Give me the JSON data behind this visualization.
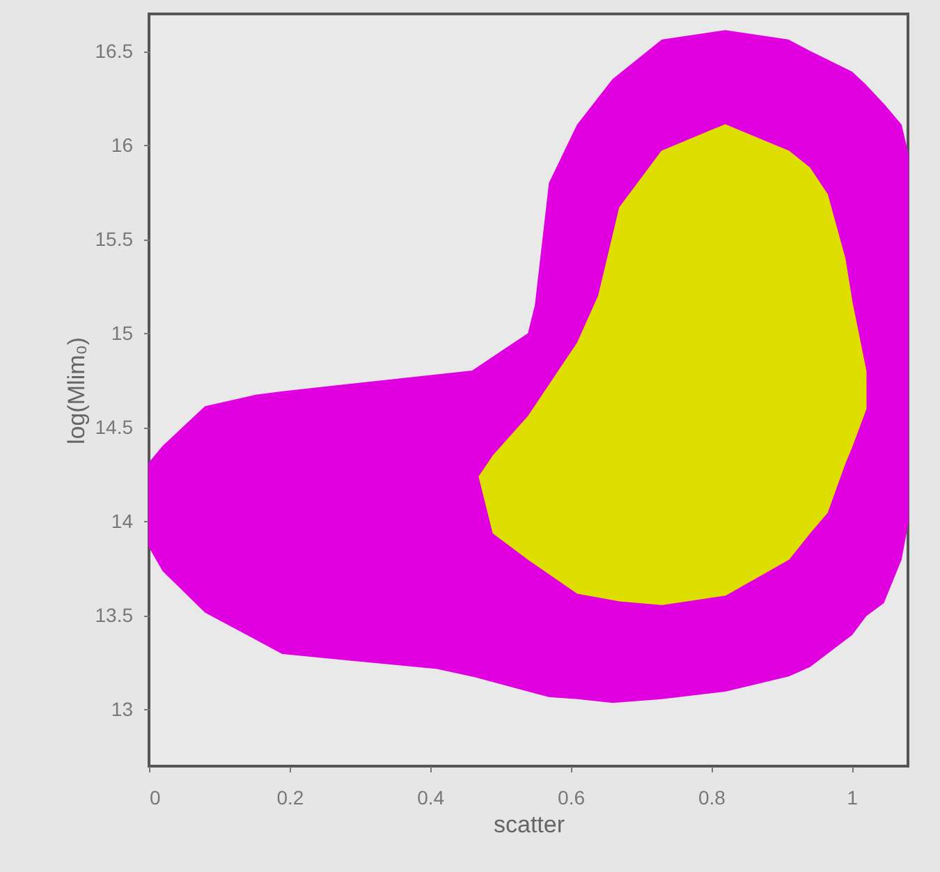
{
  "chart_data": {
    "type": "area",
    "xlabel": "scatter",
    "ylabel": "log(Mlim₀)",
    "xlim": [
      0,
      1.08
    ],
    "xticks": [
      0,
      0.2,
      0.4,
      0.6,
      0.8,
      1
    ],
    "ylim": [
      12.7,
      16.7
    ],
    "yticks": [
      13,
      13.5,
      14,
      14.5,
      15,
      15.5,
      16,
      16.5
    ],
    "grid": false,
    "series": [
      {
        "color": "#e000e0",
        "x": [
          0,
          0.02,
          0.08,
          0.15,
          0.19,
          0.41,
          0.46,
          0.54,
          0.55,
          0.57,
          0.61,
          0.66,
          0.73,
          0.82,
          0.91,
          0.94,
          1.0,
          1.02,
          1.045,
          1.07,
          1.08,
          1.08,
          1.07,
          1.045,
          1.02,
          1.0,
          0.94,
          0.91,
          0.82,
          0.73,
          0.66,
          0.61,
          0.57,
          0.55,
          0.54,
          0.46,
          0.41,
          0.19,
          0.15,
          0.08,
          0.02,
          0
        ],
        "values": [
          14.31,
          14.4,
          14.61,
          14.67,
          14.69,
          14.78,
          14.8,
          15.0,
          15.15,
          15.8,
          16.11,
          16.35,
          16.56,
          16.61,
          16.56,
          16.5,
          16.39,
          16.32,
          16.22,
          16.11,
          15.95,
          14.0,
          13.8,
          13.57,
          13.5,
          13.4,
          13.23,
          13.18,
          13.1,
          13.06,
          13.04,
          13.06,
          13.07,
          13.09,
          13.1,
          13.18,
          13.22,
          13.3,
          13.38,
          13.52,
          13.74,
          13.87
        ]
      },
      {
        "color": "#dede00",
        "x": [
          0.47,
          0.49,
          0.54,
          0.61,
          0.64,
          0.67,
          0.73,
          0.82,
          0.91,
          0.94,
          0.965,
          0.99,
          1.0,
          1.02,
          1.02,
          1.0,
          0.99,
          0.965,
          0.94,
          0.91,
          0.82,
          0.73,
          0.67,
          0.64,
          0.61,
          0.54,
          0.49
        ],
        "values": [
          14.24,
          14.35,
          14.56,
          14.95,
          15.2,
          15.67,
          15.97,
          16.11,
          15.97,
          15.88,
          15.74,
          15.4,
          15.17,
          14.8,
          14.6,
          14.4,
          14.31,
          14.05,
          13.94,
          13.8,
          13.61,
          13.56,
          13.58,
          13.6,
          13.62,
          13.8,
          13.94
        ]
      }
    ]
  }
}
